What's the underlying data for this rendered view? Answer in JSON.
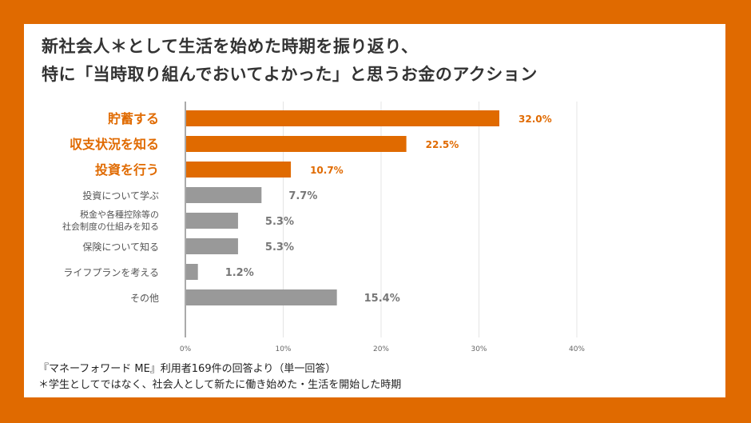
{
  "title_line1": "新社会人＊として生活を始めた時期を振り返り、",
  "title_line2": "特に「当時取り組んでおいてよかった」と思うお金のアクション",
  "notes": [
    "『マネーフォワード ME』利用者169件の回答より（単一回答）",
    "＊学生としてではなく、社会人として新たに働き始めた・生活を開始した時期"
  ],
  "colors": {
    "highlight": "#e06a00",
    "other": "#999999",
    "frame": "#e06a00"
  },
  "chart_data": {
    "type": "bar",
    "orientation": "horizontal",
    "categories": [
      [
        "貯蓄する"
      ],
      [
        "収支状況を知る"
      ],
      [
        "投資を行う"
      ],
      [
        "投資について学ぶ"
      ],
      [
        "税金や各種控除等の",
        "社会制度の仕組みを知る"
      ],
      [
        "保険について知る"
      ],
      [
        "ライフプランを考える"
      ],
      [
        "その他"
      ]
    ],
    "values": [
      32.0,
      22.5,
      10.7,
      7.7,
      5.3,
      5.3,
      1.2,
      15.4
    ],
    "value_labels": [
      "32.0%",
      "22.5%",
      "10.7%",
      "7.7%",
      "5.3%",
      "5.3%",
      "1.2%",
      "15.4%"
    ],
    "highlighted": [
      true,
      true,
      true,
      false,
      false,
      false,
      false,
      false
    ],
    "xlim": [
      0,
      40
    ],
    "xticks": [
      0,
      10,
      20,
      30,
      40
    ],
    "xtick_labels": [
      "0%",
      "10%",
      "20%",
      "30%",
      "40%"
    ],
    "grid": true
  }
}
